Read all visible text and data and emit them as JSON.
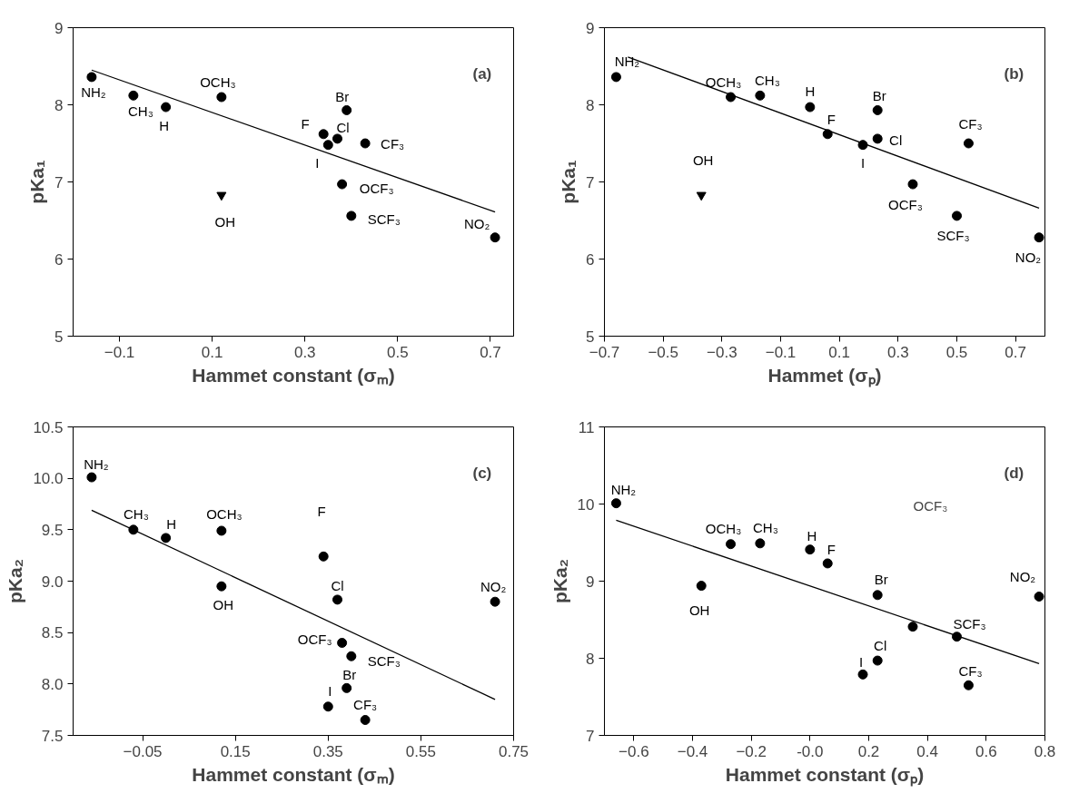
{
  "chart_data": [
    {
      "type": "scatter",
      "xlabel": "Hammet constant (σₘ)",
      "ylabel": "pKa₁",
      "xlim": [
        -0.2,
        0.75
      ],
      "ylim": [
        5,
        9
      ],
      "xticks": [
        -0.1,
        0.1,
        0.3,
        0.5,
        0.7
      ],
      "yticks": [
        5,
        6,
        7,
        8,
        9
      ],
      "grid": false,
      "series": [
        {
          "marker": "circle",
          "color": "#000000",
          "x": [
            -0.16,
            -0.07,
            0,
            0.12,
            0.34,
            0.35,
            0.37,
            0.39,
            0.43,
            0.38,
            0.4,
            0.71
          ],
          "values": [
            8.36,
            8.12,
            7.97,
            8.1,
            7.62,
            7.48,
            7.56,
            7.93,
            7.5,
            6.97,
            6.56,
            6.28
          ]
        },
        {
          "marker": "triangle",
          "color": "#000000",
          "x": [
            0.12
          ],
          "values": [
            6.83
          ]
        },
        {
          "type": "line",
          "color": "#000000",
          "x": [
            -0.16,
            0.71
          ],
          "values": [
            8.45,
            6.61
          ]
        }
      ],
      "annotations": [
        "(a)",
        {
          "text": "NH₂",
          "x": -0.16,
          "y": 8.36
        },
        {
          "text": "CH₃",
          "x": -0.07,
          "y": 8.12
        },
        {
          "text": "H",
          "x": 0,
          "y": 7.97
        },
        {
          "text": "OCH₃",
          "x": 0.12,
          "y": 8.1
        },
        {
          "text": "F",
          "x": 0.34,
          "y": 7.62
        },
        {
          "text": "I",
          "x": 0.35,
          "y": 7.48
        },
        {
          "text": "Cl",
          "x": 0.37,
          "y": 7.56
        },
        {
          "text": "Br",
          "x": 0.39,
          "y": 7.93
        },
        {
          "text": "CF₃",
          "x": 0.43,
          "y": 7.5
        },
        {
          "text": "OCF₃",
          "x": 0.38,
          "y": 6.97
        },
        {
          "text": "SCF₃",
          "x": 0.4,
          "y": 6.56
        },
        {
          "text": "NO₂",
          "x": 0.71,
          "y": 6.28
        },
        {
          "text": "OH",
          "x": 0.12,
          "y": 6.83
        }
      ]
    },
    {
      "type": "scatter",
      "xlabel": "Hammet (σₚ)",
      "ylabel": "pKa₁",
      "xlim": [
        -0.7,
        0.8
      ],
      "ylim": [
        5,
        9
      ],
      "xticks": [
        -0.7,
        -0.5,
        -0.3,
        -0.1,
        0.1,
        0.3,
        0.5,
        0.7
      ],
      "yticks": [
        5,
        6,
        7,
        8,
        9
      ],
      "grid": false,
      "series": [
        {
          "marker": "circle",
          "color": "#000000",
          "x": [
            -0.66,
            -0.27,
            -0.17,
            0,
            0.06,
            0.18,
            0.23,
            0.23,
            0.54,
            0.35,
            0.5,
            0.78
          ],
          "values": [
            8.36,
            8.1,
            8.12,
            7.97,
            7.62,
            7.48,
            7.93,
            7.56,
            7.5,
            6.97,
            6.56,
            6.28
          ]
        },
        {
          "marker": "triangle",
          "color": "#000000",
          "x": [
            -0.37
          ],
          "values": [
            6.83
          ]
        },
        {
          "type": "line",
          "color": "#000000",
          "x": [
            -0.62,
            0.78
          ],
          "values": [
            8.62,
            6.66
          ]
        }
      ],
      "annotations": [
        "(b)",
        {
          "text": "NH₂",
          "x": -0.66,
          "y": 8.36
        },
        {
          "text": "OCH₃",
          "x": -0.27,
          "y": 8.1
        },
        {
          "text": "CH₃",
          "x": -0.17,
          "y": 8.12
        },
        {
          "text": "H",
          "x": 0,
          "y": 7.97
        },
        {
          "text": "F",
          "x": 0.06,
          "y": 7.62
        },
        {
          "text": "I",
          "x": 0.18,
          "y": 7.48
        },
        {
          "text": "Br",
          "x": 0.23,
          "y": 7.93
        },
        {
          "text": "Cl",
          "x": 0.23,
          "y": 7.56
        },
        {
          "text": "CF₃",
          "x": 0.54,
          "y": 7.5
        },
        {
          "text": "OCF₃",
          "x": 0.35,
          "y": 6.97
        },
        {
          "text": "SCF₃",
          "x": 0.5,
          "y": 6.56
        },
        {
          "text": "NO₂",
          "x": 0.78,
          "y": 6.28
        },
        {
          "text": "OH",
          "x": -0.37,
          "y": 6.83
        }
      ]
    },
    {
      "type": "scatter",
      "xlabel": "Hammet constant (σₘ)",
      "ylabel": "pKa₂",
      "xlim": [
        -0.2,
        0.75
      ],
      "ylim": [
        7.5,
        10.5
      ],
      "xticks": [
        -0.05,
        0.15,
        0.35,
        0.55,
        0.75
      ],
      "yticks": [
        {
          "value": 7.5,
          "label": "7.5"
        },
        {
          "value": 8,
          "label": "8.0"
        },
        {
          "value": 8.5,
          "label": "8.5"
        },
        {
          "value": 9,
          "label": "9.0"
        },
        {
          "value": 9.5,
          "label": "9.5"
        },
        {
          "value": 10,
          "label": "10.0"
        },
        {
          "value": 10.5,
          "label": "10.5"
        }
      ],
      "grid": false,
      "series": [
        {
          "marker": "circle",
          "color": "#000000",
          "x": [
            -0.16,
            -0.07,
            0,
            0.12,
            0.12,
            0.34,
            0.37,
            0.38,
            0.4,
            0.39,
            0.35,
            0.43,
            0.71
          ],
          "values": [
            10.01,
            9.5,
            9.42,
            9.49,
            8.95,
            9.24,
            8.82,
            8.4,
            8.27,
            7.96,
            7.78,
            7.65,
            8.8
          ]
        },
        {
          "type": "line",
          "color": "#000000",
          "x": [
            -0.16,
            0.71
          ],
          "values": [
            9.69,
            7.85
          ]
        }
      ],
      "annotations": [
        "(c)",
        {
          "text": "NH₂",
          "x": -0.16,
          "y": 10.01
        },
        {
          "text": "CH₃",
          "x": -0.07,
          "y": 9.5
        },
        {
          "text": "H",
          "x": 0,
          "y": 9.42
        },
        {
          "text": "OCH₃",
          "x": 0.12,
          "y": 9.49
        },
        {
          "text": "OH",
          "x": 0.12,
          "y": 8.95
        },
        {
          "text": "F",
          "x": 0.34,
          "y": 9.24
        },
        {
          "text": "Cl",
          "x": 0.37,
          "y": 8.82
        },
        {
          "text": "OCF₃",
          "x": 0.38,
          "y": 8.4
        },
        {
          "text": "SCF₃",
          "x": 0.4,
          "y": 8.27
        },
        {
          "text": "Br",
          "x": 0.39,
          "y": 7.96
        },
        {
          "text": "I",
          "x": 0.35,
          "y": 7.78
        },
        {
          "text": "CF₃",
          "x": 0.43,
          "y": 7.65
        },
        {
          "text": "NO₂",
          "x": 0.71,
          "y": 8.8
        }
      ]
    },
    {
      "type": "scatter",
      "xlabel": "Hammet constant (σₚ)",
      "ylabel": "pKa₂",
      "xlim": [
        -0.7,
        0.8
      ],
      "ylim": [
        7,
        11
      ],
      "xticks": [
        -0.6,
        -0.4,
        -0.2,
        {
          "value": 0,
          "label": "-0.0"
        },
        0.2,
        0.4,
        0.6,
        0.8
      ],
      "yticks": [
        7,
        8,
        9,
        10,
        11
      ],
      "grid": false,
      "series": [
        {
          "marker": "circle",
          "color": "#000000",
          "x": [
            -0.66,
            -0.27,
            -0.17,
            0,
            0.06,
            -0.37,
            0.23,
            0.35,
            0.5,
            0.18,
            0.23,
            0.54,
            0.78
          ],
          "values": [
            10.01,
            9.48,
            9.49,
            9.41,
            9.23,
            8.94,
            8.82,
            8.41,
            8.28,
            7.79,
            7.97,
            7.65,
            8.8
          ]
        },
        {
          "type": "line",
          "color": "#000000",
          "x": [
            -0.66,
            0.78
          ],
          "values": [
            9.79,
            7.93
          ]
        }
      ],
      "annotations": [
        "(d)",
        {
          "text": "NH₂",
          "x": -0.66,
          "y": 10.01
        },
        {
          "text": "OCH₃",
          "x": -0.27,
          "y": 9.48
        },
        {
          "text": "CH₃",
          "x": -0.17,
          "y": 9.49
        },
        {
          "text": "H",
          "x": 0,
          "y": 9.41
        },
        {
          "text": "F",
          "x": 0.06,
          "y": 9.23
        },
        {
          "text": "OH",
          "x": -0.37,
          "y": 8.94
        },
        {
          "text": "Br",
          "x": 0.23,
          "y": 8.82
        },
        "OCF₃",
        {
          "text": "SCF₃",
          "x": 0.5,
          "y": 8.28
        },
        {
          "text": "I",
          "x": 0.18,
          "y": 7.79
        },
        {
          "text": "Cl",
          "x": 0.23,
          "y": 7.97
        },
        {
          "text": "CF₃",
          "x": 0.54,
          "y": 7.65
        },
        {
          "text": "NO₂",
          "x": 0.78,
          "y": 8.8
        }
      ]
    }
  ]
}
